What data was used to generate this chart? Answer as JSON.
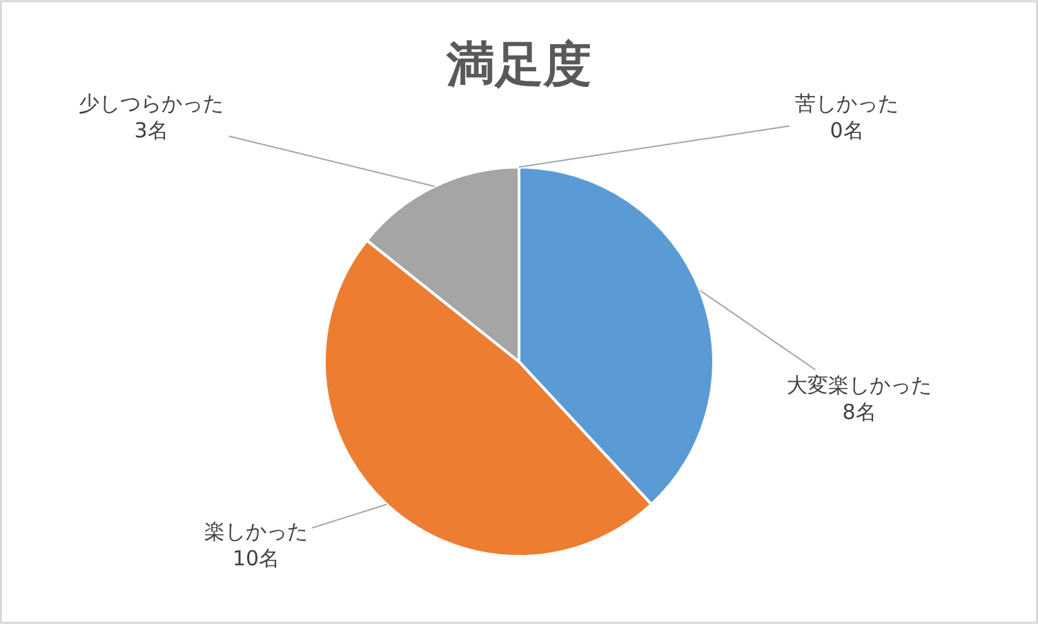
{
  "chart_data": {
    "type": "pie",
    "title": "満足度",
    "categories": [
      "大変楽しかった",
      "楽しかった",
      "少しつらかった",
      "苦しかった"
    ],
    "values": [
      8,
      10,
      3,
      0
    ],
    "colors": [
      "#5b9bd5",
      "#ed7d31",
      "#a5a5a5",
      "#ffc000"
    ],
    "value_labels": [
      "8名",
      "10名",
      "3名",
      "0名"
    ],
    "legend": false
  }
}
